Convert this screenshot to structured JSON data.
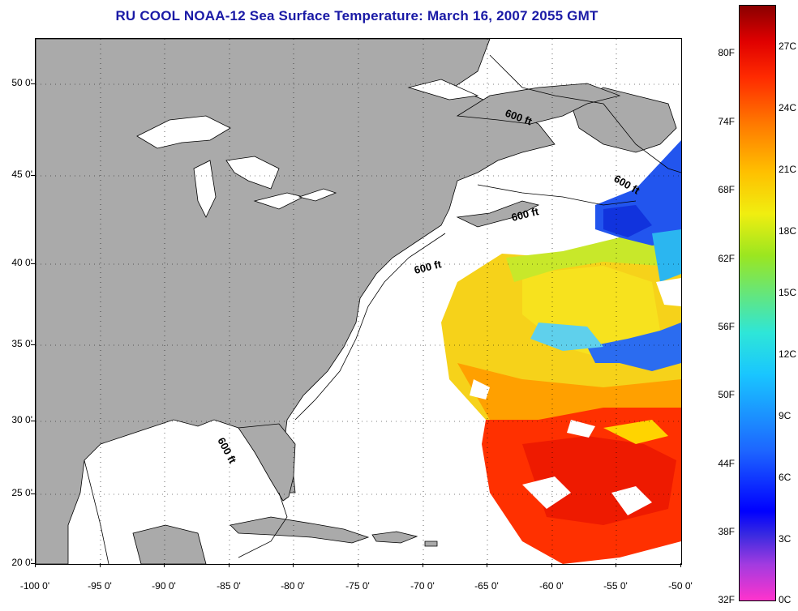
{
  "title": "RU COOL  NOAA-12  Sea Surface Temperature:  March 16, 2007 2055 GMT",
  "map": {
    "lat_labels": [
      "50 0'",
      "45 0'",
      "40 0'",
      "35 0'",
      "30 0'",
      "25 0'",
      "20 0'"
    ],
    "lon_labels": [
      "-100 0'",
      "-95 0'",
      "-90 0'",
      "-85 0'",
      "-80 0'",
      "-75 0'",
      "-70 0'",
      "-65 0'",
      "-60 0'",
      "-55 0'",
      "-50 0'"
    ],
    "lat_range": [
      20,
      52.3
    ],
    "lon_range": [
      -100,
      -50
    ],
    "isobath_label": "600 ft",
    "colors": {
      "land": "#aaaaaa",
      "water": "#ffffff",
      "grid": "#000000"
    }
  },
  "colorbar": {
    "fahrenheit_labels": [
      "80F",
      "74F",
      "68F",
      "62F",
      "56F",
      "50F",
      "44F",
      "38F",
      "32F"
    ],
    "celsius_labels": [
      "27C",
      "24C",
      "21C",
      "18C",
      "15C",
      "12C",
      "9C",
      "6C",
      "3C",
      "0C"
    ]
  }
}
